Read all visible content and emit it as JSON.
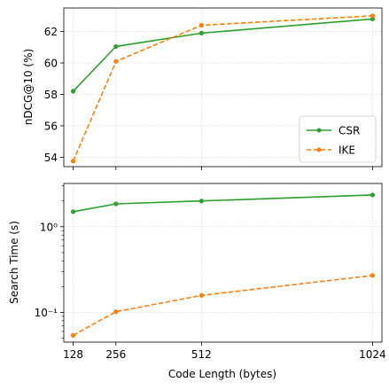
{
  "chart_data": [
    {
      "type": "line",
      "xlabel": "",
      "ylabel": "nDCG@10 (%)",
      "x": [
        128,
        256,
        512,
        1024
      ],
      "xlim": [
        100,
        1052
      ],
      "ylim": [
        53.4,
        63.5
      ],
      "yticks": [
        54,
        56,
        58,
        60,
        62
      ],
      "ytick_labels": [
        "54",
        "56",
        "58",
        "60",
        "62"
      ],
      "grid": true,
      "legend": "bottom-right",
      "series": [
        {
          "name": "CSR",
          "color": "#2ca02c",
          "style": "solid",
          "values": [
            58.2,
            61.05,
            61.9,
            62.8
          ]
        },
        {
          "name": "IKE",
          "color": "#ff7f0e",
          "style": "dashed",
          "values": [
            53.75,
            60.1,
            62.4,
            63.0
          ]
        }
      ]
    },
    {
      "type": "line",
      "xlabel": "Code Length (bytes)",
      "ylabel": "Search Time (s)",
      "yscale": "log",
      "x": [
        128,
        256,
        512,
        1024
      ],
      "xlim": [
        100,
        1052
      ],
      "ylim": [
        0.045,
        3.2
      ],
      "xticks": [
        128,
        256,
        512,
        1024
      ],
      "xtick_labels": [
        "128",
        "256",
        "512",
        "1024"
      ],
      "yticks": [
        0.1,
        1
      ],
      "ytick_labels": [
        "10⁻¹",
        "10⁰"
      ],
      "grid": true,
      "series": [
        {
          "name": "CSR",
          "color": "#2ca02c",
          "style": "solid",
          "values": [
            1.5,
            1.85,
            2.0,
            2.35
          ]
        },
        {
          "name": "IKE",
          "color": "#ff7f0e",
          "style": "dashed",
          "values": [
            0.054,
            0.102,
            0.158,
            0.27
          ]
        }
      ]
    }
  ]
}
